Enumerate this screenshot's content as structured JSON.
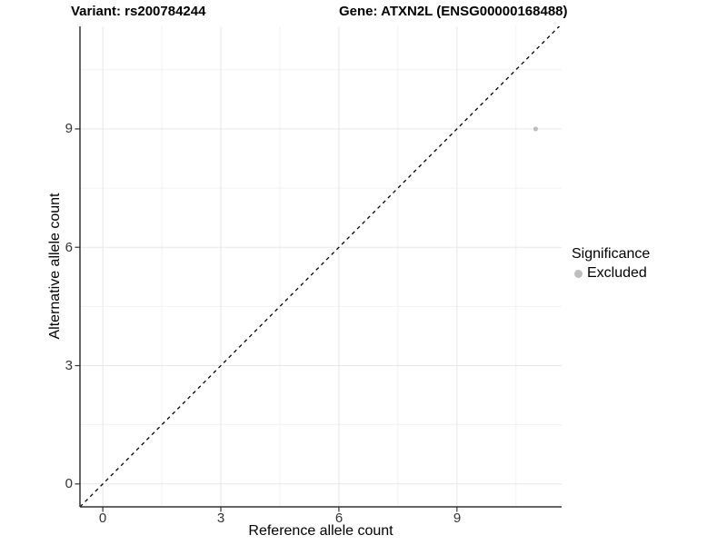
{
  "figure": {
    "title_left": "Variant: rs200784244",
    "title_right": "Gene: ATXN2L (ENSG00000168488)"
  },
  "chart_data": {
    "type": "scatter",
    "title": "Variant: rs200784244 — Gene: ATXN2L (ENSG00000168488)",
    "xlabel": "Reference allele count",
    "ylabel": "Alternative allele count",
    "x_ticks": [
      0,
      3,
      6,
      9
    ],
    "y_ticks": [
      0,
      3,
      6,
      9
    ],
    "x_minor_gridlines": [
      1.5,
      4.5,
      7.5,
      10.5
    ],
    "y_minor_gridlines": [
      1.5,
      4.5,
      7.5,
      10.5
    ],
    "xlim": [
      -0.58,
      11.66
    ],
    "ylim": [
      -0.58,
      11.6
    ],
    "grid": true,
    "reference_line": {
      "type": "identity y=x",
      "style": "dashed",
      "color": "#000000"
    },
    "series": [
      {
        "name": "Excluded",
        "color": "#bdbdbd",
        "points": [
          {
            "x": 11,
            "y": 9
          }
        ]
      }
    ],
    "legend": {
      "title": "Significance",
      "position": "right",
      "entries": [
        {
          "label": "Excluded",
          "color": "#bdbdbd"
        }
      ]
    },
    "colors": {
      "major_gridline": "#e7e7e7",
      "minor_gridline": "#f1f1f1",
      "axis_line": "#333333",
      "tick_mark": "#333333",
      "point": "#bdbdbd"
    }
  }
}
